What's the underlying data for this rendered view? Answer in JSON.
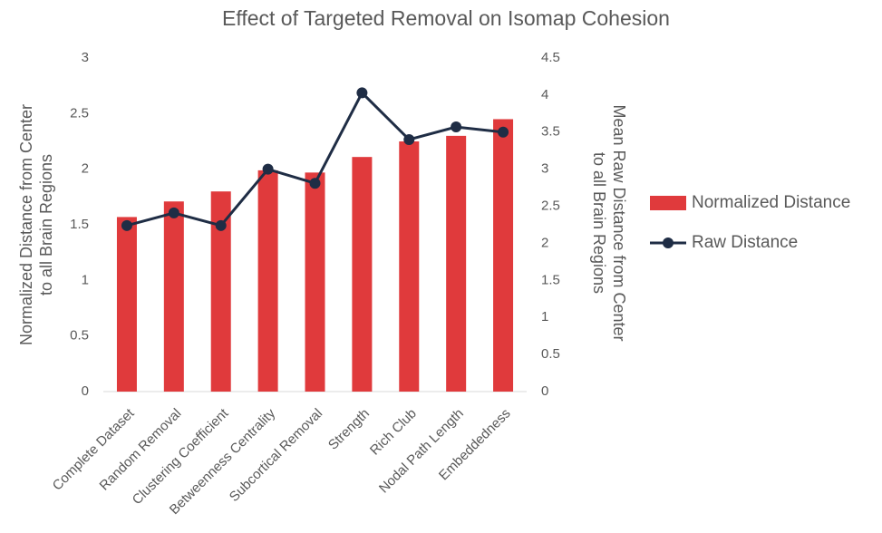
{
  "chart_data": {
    "type": "bar-line",
    "title": "Effect of Targeted Removal on Isomap Cohesion",
    "ylabel": [
      "Normalized Distance from Center",
      "to all Brain Regions"
    ],
    "y2label": [
      "Mean Raw Distance from Center",
      "to all Brain Regions"
    ],
    "categories": [
      "Complete Dataset",
      "Random Removal",
      "Clustering Coefficient",
      "Betweenness Centrality",
      "Subcortical Removal",
      "Strength",
      "Rich Club",
      "Nodal Path Length",
      "Embeddedness"
    ],
    "series": [
      {
        "name": "Normalized Distance",
        "type": "bar",
        "color": "#e03a3c",
        "values": [
          1.57,
          1.71,
          1.8,
          1.99,
          1.97,
          2.11,
          2.25,
          2.3,
          2.45
        ]
      },
      {
        "name": "Raw Distance",
        "type": "line",
        "axis": "y2",
        "color": "#1f2d45",
        "values": [
          2.24,
          2.41,
          2.24,
          3.0,
          2.81,
          4.03,
          3.4,
          3.57,
          3.5
        ]
      }
    ],
    "ylim": [
      0,
      3
    ],
    "yticks": [
      0,
      0.5,
      1,
      1.5,
      2,
      2.5,
      3
    ],
    "y2lim": [
      0,
      4.5
    ],
    "y2ticks": [
      0,
      0.5,
      1,
      1.5,
      2,
      2.5,
      3,
      3.5,
      4,
      4.5
    ],
    "legend": "right",
    "grid": false
  }
}
